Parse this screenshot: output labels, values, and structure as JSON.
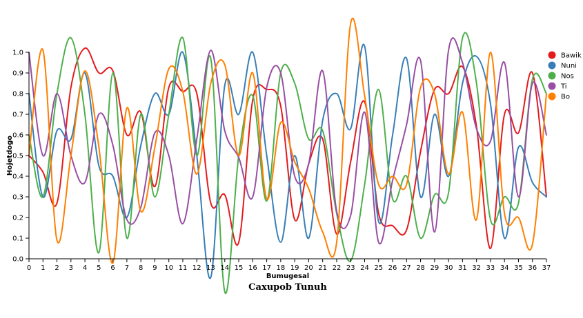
{
  "chart_data": {
    "type": "line",
    "title": "Caxupob Tunuh",
    "xlabel": "Bumugesal",
    "ylabel": "Hojetdogo",
    "xlim": [
      0,
      37
    ],
    "ylim": [
      0,
      1
    ],
    "x_ticks": [
      0,
      1,
      2,
      3,
      4,
      5,
      6,
      7,
      8,
      9,
      10,
      11,
      12,
      13,
      14,
      15,
      16,
      17,
      18,
      19,
      20,
      21,
      22,
      23,
      24,
      25,
      26,
      27,
      28,
      29,
      30,
      31,
      32,
      33,
      34,
      35,
      36,
      37
    ],
    "y_ticks": [
      0.0,
      0.1,
      0.2,
      0.3,
      0.4,
      0.5,
      0.6,
      0.7,
      0.8,
      0.9,
      1.0
    ],
    "y_tick_labels": [
      "0.0",
      "0.1",
      "0.2",
      "0.3",
      "0.4",
      "0.5",
      "0.6",
      "0.7",
      "0.8",
      "0.9",
      "1.0"
    ],
    "grid": false,
    "legend_position": "right",
    "x": [
      0,
      1,
      2,
      3,
      4,
      5,
      6,
      7,
      8,
      9,
      10,
      11,
      12,
      13,
      14,
      15,
      16,
      17,
      18,
      19,
      20,
      21,
      22,
      23,
      24,
      25,
      26,
      27,
      28,
      29,
      30,
      31,
      32,
      33,
      34,
      35,
      36,
      37
    ],
    "series": [
      {
        "name": "Bawik",
        "color": "#e41a1c",
        "values": [
          0.5,
          0.42,
          0.27,
          0.83,
          1.02,
          0.9,
          0.91,
          0.6,
          0.71,
          0.35,
          0.83,
          0.81,
          0.8,
          0.27,
          0.31,
          0.08,
          0.77,
          0.82,
          0.74,
          0.19,
          0.46,
          0.58,
          0.12,
          0.47,
          0.76,
          0.22,
          0.16,
          0.14,
          0.52,
          0.82,
          0.8,
          0.93,
          0.64,
          0.05,
          0.7,
          0.61,
          0.9,
          0.3
        ]
      },
      {
        "name": "Nuni",
        "color": "#377eb8",
        "values": [
          0.8,
          0.3,
          0.62,
          0.58,
          0.9,
          0.45,
          0.4,
          0.2,
          0.55,
          0.8,
          0.7,
          1.0,
          0.5,
          -0.09,
          0.84,
          0.7,
          1.0,
          0.5,
          0.08,
          0.5,
          0.1,
          0.67,
          0.8,
          0.63,
          1.03,
          0.18,
          0.6,
          0.97,
          0.3,
          0.7,
          0.4,
          0.85,
          0.98,
          0.75,
          0.1,
          0.54,
          0.37,
          0.3
        ]
      },
      {
        "name": "Nos",
        "color": "#4daf4a",
        "values": [
          0.6,
          0.3,
          0.8,
          1.07,
          0.7,
          0.03,
          0.9,
          0.1,
          0.7,
          0.3,
          0.7,
          1.07,
          0.5,
          0.97,
          -0.16,
          0.5,
          0.79,
          0.28,
          0.9,
          0.85,
          0.58,
          0.62,
          0.22,
          -0.01,
          0.36,
          0.82,
          0.29,
          0.4,
          0.1,
          0.31,
          0.32,
          1.07,
          0.85,
          0.19,
          0.3,
          0.27,
          0.87,
          0.8
        ]
      },
      {
        "name": "Ti",
        "color": "#984ea3",
        "values": [
          1.0,
          0.5,
          0.8,
          0.5,
          0.37,
          0.7,
          0.55,
          0.19,
          0.25,
          0.61,
          0.5,
          0.17,
          0.58,
          1.01,
          0.62,
          0.49,
          0.3,
          0.83,
          0.9,
          0.4,
          0.46,
          0.91,
          0.23,
          0.21,
          0.71,
          0.08,
          0.38,
          0.65,
          0.96,
          0.13,
          1.01,
          0.95,
          0.63,
          0.57,
          0.95,
          0.3,
          0.85,
          0.6
        ]
      },
      {
        "name": "Bo",
        "color": "#ff7f00",
        "values": [
          0.5,
          1.01,
          0.09,
          0.5,
          0.91,
          0.54,
          -0.02,
          0.73,
          0.23,
          0.54,
          0.92,
          0.81,
          0.41,
          0.85,
          0.94,
          0.5,
          0.9,
          0.29,
          0.66,
          0.47,
          0.34,
          0.13,
          0.08,
          1.14,
          0.79,
          0.36,
          0.4,
          0.36,
          0.83,
          0.8,
          0.41,
          0.71,
          0.19,
          1.0,
          0.22,
          0.2,
          0.07,
          0.8
        ]
      }
    ]
  }
}
